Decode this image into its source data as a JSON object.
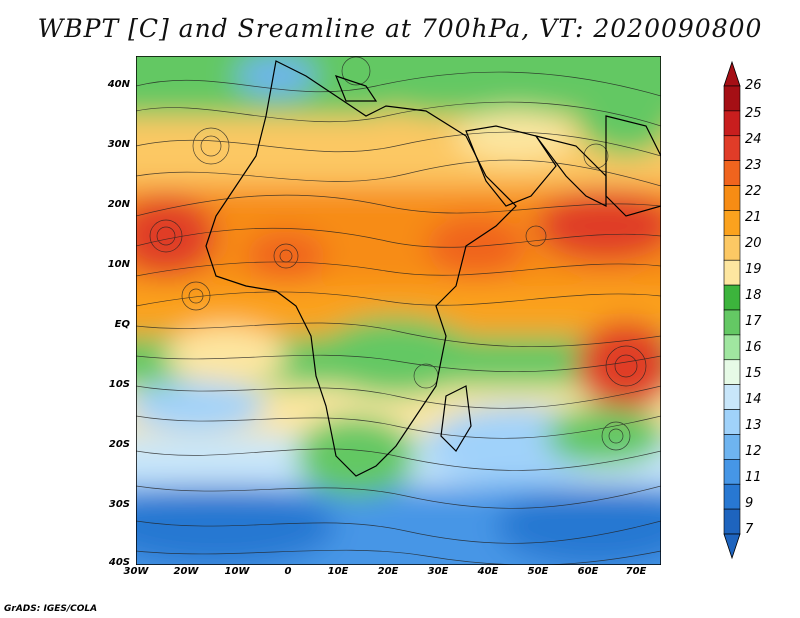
{
  "title": "WBPT [C] and Sreamline at 700hPa, VT: 2020090800",
  "lat_labels": [
    "40N",
    "30N",
    "20N",
    "10N",
    "EQ",
    "10S",
    "20S",
    "30S",
    "40S"
  ],
  "lon_labels": [
    "30W",
    "20W",
    "10W",
    "0",
    "10E",
    "20E",
    "30E",
    "40E",
    "50E",
    "60E",
    "70E"
  ],
  "colorbar": {
    "labels": [
      "26",
      "25",
      "24",
      "23",
      "22",
      "21",
      "20",
      "19",
      "18",
      "17",
      "16",
      "15",
      "14",
      "13",
      "12",
      "11",
      "9",
      "7"
    ],
    "colors": [
      "#a50f15",
      "#c81e1e",
      "#e03c28",
      "#f0641e",
      "#f78c14",
      "#fba21e",
      "#fcc864",
      "#fde6a0",
      "#3cb43c",
      "#64c864",
      "#a0e6a0",
      "#e6fae6",
      "#c8e6fa",
      "#a0d2fa",
      "#6eb4f0",
      "#4696e6",
      "#2878d2",
      "#1e64be"
    ]
  },
  "footer": "GrADS: IGES/COLA"
}
